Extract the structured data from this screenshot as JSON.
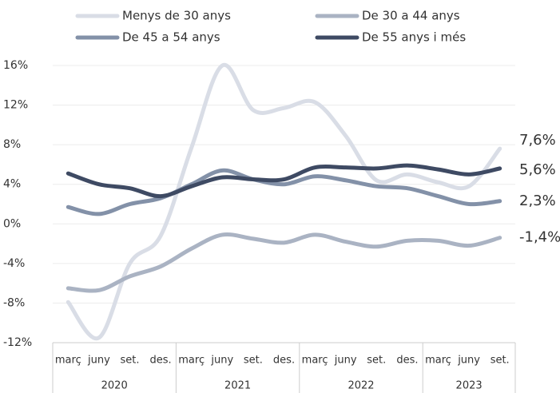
{
  "chart_data": {
    "type": "line",
    "categories": [
      {
        "label": "març",
        "group": "2020"
      },
      {
        "label": "juny",
        "group": "2020"
      },
      {
        "label": "set.",
        "group": "2020"
      },
      {
        "label": "des.",
        "group": "2020"
      },
      {
        "label": "març",
        "group": "2021"
      },
      {
        "label": "juny",
        "group": "2021"
      },
      {
        "label": "set.",
        "group": "2021"
      },
      {
        "label": "des.",
        "group": "2021"
      },
      {
        "label": "març",
        "group": "2022"
      },
      {
        "label": "juny",
        "group": "2022"
      },
      {
        "label": "set.",
        "group": "2022"
      },
      {
        "label": "des.",
        "group": "2022"
      },
      {
        "label": "març",
        "group": "2023"
      },
      {
        "label": "juny",
        "group": "2023"
      },
      {
        "label": "set.",
        "group": "2023"
      }
    ],
    "series": [
      {
        "name": "Menys de 30 anys",
        "color": "#d9dde6",
        "last_label": "7,6%",
        "values": [
          -7.9,
          -11.5,
          -4.0,
          -1.2,
          7.7,
          16.0,
          11.5,
          11.7,
          12.3,
          8.9,
          4.4,
          5.0,
          4.2,
          3.8,
          7.6
        ]
      },
      {
        "name": "De 30 a 44 anys",
        "color": "#aab3c3",
        "last_label": "-1,4%",
        "values": [
          -6.5,
          -6.7,
          -5.3,
          -4.3,
          -2.5,
          -1.1,
          -1.5,
          -1.9,
          -1.1,
          -1.8,
          -2.3,
          -1.7,
          -1.7,
          -2.2,
          -1.4
        ]
      },
      {
        "name": "De 45 a 54 anys",
        "color": "#8391a8",
        "last_label": "2,3%",
        "values": [
          1.7,
          1.0,
          2.0,
          2.6,
          4.0,
          5.4,
          4.5,
          4.0,
          4.8,
          4.4,
          3.8,
          3.6,
          2.8,
          2.0,
          2.3
        ]
      },
      {
        "name": "De 55 anys i més",
        "color": "#3e4a63",
        "last_label": "5,6%",
        "values": [
          5.1,
          4.0,
          3.6,
          2.8,
          3.8,
          4.7,
          4.5,
          4.5,
          5.7,
          5.7,
          5.6,
          5.9,
          5.5,
          5.0,
          5.6
        ]
      }
    ],
    "ylim": [
      -12,
      16
    ],
    "yticks": [
      {
        "value": -12,
        "label": "-12%"
      },
      {
        "value": -8,
        "label": "-8%"
      },
      {
        "value": -4,
        "label": "-4%"
      },
      {
        "value": 0,
        "label": "0%"
      },
      {
        "value": 4,
        "label": "4%"
      },
      {
        "value": 8,
        "label": "8%"
      },
      {
        "value": 12,
        "label": "12%"
      },
      {
        "value": 16,
        "label": "16%"
      }
    ],
    "grid": true
  }
}
